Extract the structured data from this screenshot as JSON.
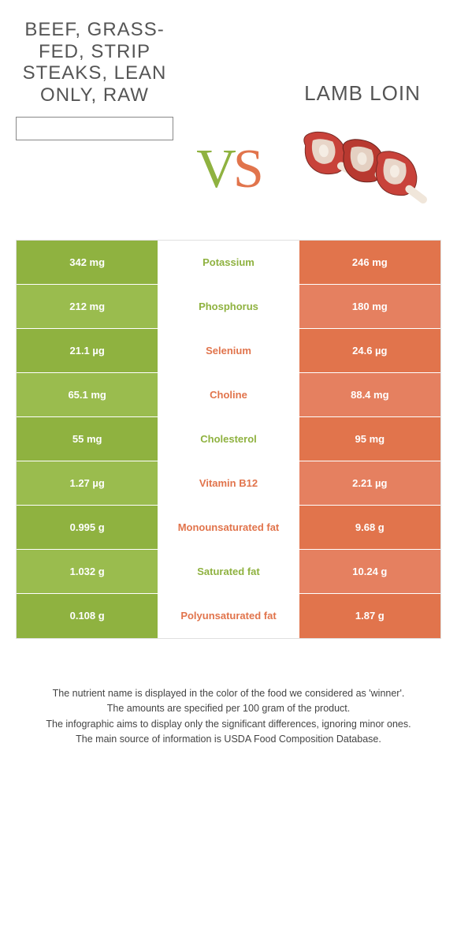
{
  "colors": {
    "green": "#8fb240",
    "green_alt": "#9abc4e",
    "orange": "#e1744c",
    "orange_alt": "#e58060",
    "text_mid_green": "#8fb240",
    "text_mid_orange": "#e1744c"
  },
  "header": {
    "left_title": "BEEF, GRASS-FED, STRIP STEAKS, LEAN ONLY, RAW",
    "right_title": "LAMB LOIN",
    "vs_v": "V",
    "vs_s": "S"
  },
  "rows": [
    {
      "left": "342 mg",
      "mid": "Potassium",
      "right": "246 mg",
      "winner": "left"
    },
    {
      "left": "212 mg",
      "mid": "Phosphorus",
      "right": "180 mg",
      "winner": "left"
    },
    {
      "left": "21.1 µg",
      "mid": "Selenium",
      "right": "24.6 µg",
      "winner": "right"
    },
    {
      "left": "65.1 mg",
      "mid": "Choline",
      "right": "88.4 mg",
      "winner": "right"
    },
    {
      "left": "55 mg",
      "mid": "Cholesterol",
      "right": "95 mg",
      "winner": "left"
    },
    {
      "left": "1.27 µg",
      "mid": "Vitamin B12",
      "right": "2.21 µg",
      "winner": "right"
    },
    {
      "left": "0.995 g",
      "mid": "Monounsaturated fat",
      "right": "9.68 g",
      "winner": "right"
    },
    {
      "left": "1.032 g",
      "mid": "Saturated fat",
      "right": "10.24 g",
      "winner": "left"
    },
    {
      "left": "0.108 g",
      "mid": "Polyunsaturated fat",
      "right": "1.87 g",
      "winner": "right"
    }
  ],
  "footer": [
    "The nutrient name is displayed in the color of the food we considered as 'winner'.",
    "The amounts are specified per 100 gram of the product.",
    "The infographic aims to display only the significant differences, ignoring minor ones.",
    "The main source of information is USDA Food Composition Database."
  ]
}
